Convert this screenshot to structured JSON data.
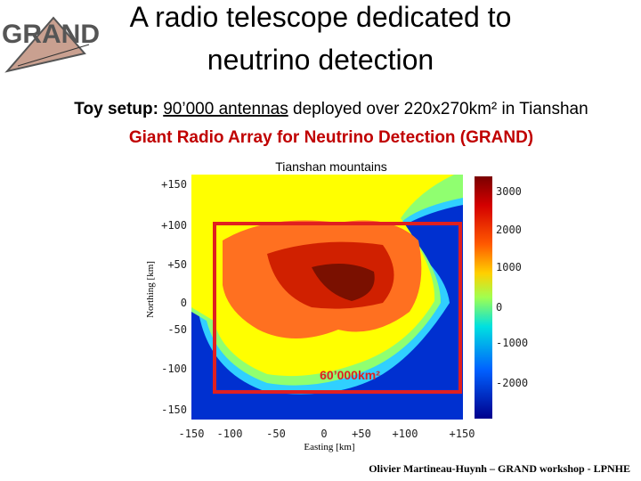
{
  "logo": "GRAND",
  "title": {
    "line1": "A radio telescope dedicated to",
    "line2": "neutrino detection"
  },
  "setup": {
    "label": "Toy setup:",
    "antennas": "90’000 antennas",
    "rest": " deployed over 220x270km² in Tianshan"
  },
  "subtitle": "Giant Radio Array for Neutrino Detection (GRAND)",
  "figure": {
    "title": "Tianshan mountains",
    "y_label": "Northing [km]",
    "x_label": "Easting [km]",
    "y_ticks": [
      "+150",
      "+100",
      "+50",
      "0",
      "-50",
      "-100",
      "-150"
    ],
    "x_ticks": [
      "-150",
      "-100",
      "-50",
      "0",
      "+50",
      "+100",
      "+150"
    ],
    "colorbar_ticks": [
      "3000",
      "2000",
      "1000",
      "0",
      "-1000",
      "-2000"
    ],
    "annotation": "60’000km²"
  },
  "footer": "Olivier Martineau-Huynh – GRAND workshop - LPNHE"
}
